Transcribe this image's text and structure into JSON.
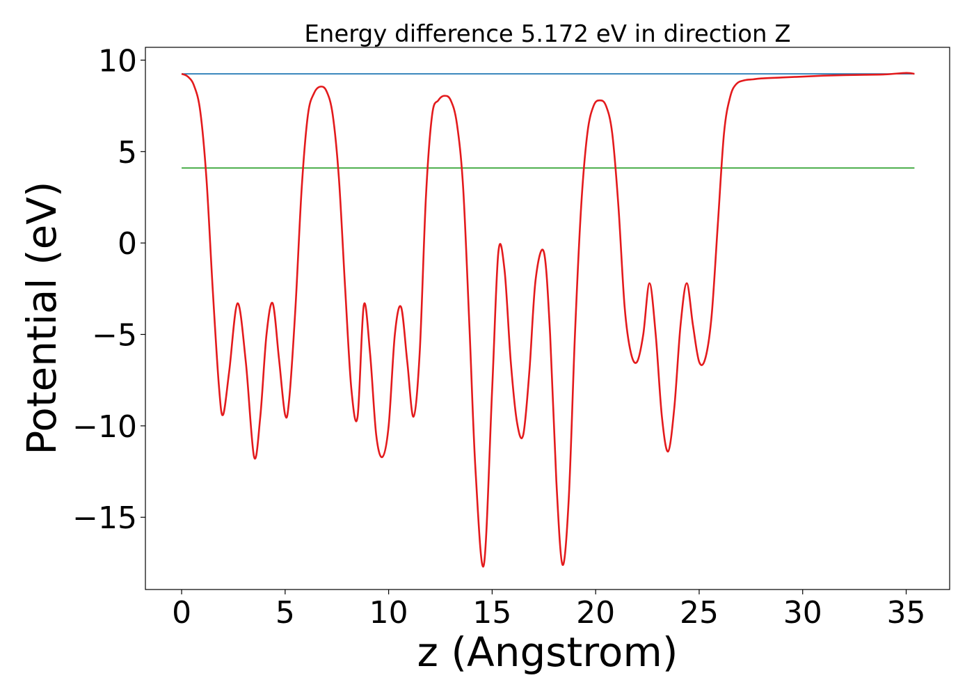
{
  "chart_data": {
    "type": "line",
    "title": "Energy difference 5.172 eV in direction Z",
    "xlabel": "z (Angstrom)",
    "ylabel": "Potential (eV)",
    "xlim": [
      -1.75,
      37.1
    ],
    "ylim": [
      -18.95,
      10.7
    ],
    "xticks": [
      0,
      5,
      10,
      15,
      20,
      25,
      30,
      35
    ],
    "xtick_labels": [
      "0",
      "5",
      "10",
      "15",
      "20",
      "25",
      "30",
      "35"
    ],
    "yticks": [
      10,
      5,
      0,
      -5,
      -10,
      -15
    ],
    "ytick_labels": [
      "10",
      "5",
      "0",
      "−5",
      "−10",
      "−15"
    ],
    "grid": false,
    "series": [
      {
        "color": "#1f77b4",
        "x": [
          0,
          35.4
        ],
        "y": [
          9.25,
          9.25
        ]
      },
      {
        "color": "#2ca02c",
        "x": [
          0,
          35.4
        ],
        "y": [
          4.1,
          4.1
        ]
      },
      {
        "color": "#e31a1c",
        "x": [
          0,
          0.3,
          0.6,
          0.9,
          1.2,
          1.5,
          1.8,
          2.0,
          2.3,
          2.7,
          3.1,
          3.5,
          3.8,
          4.1,
          4.4,
          4.7,
          5.0,
          5.2,
          5.5,
          5.8,
          6.1,
          6.4,
          6.7,
          7.0,
          7.3,
          7.6,
          7.9,
          8.2,
          8.5,
          8.8,
          9.1,
          9.4,
          9.7,
          10.0,
          10.3,
          10.6,
          10.9,
          11.2,
          11.5,
          11.8,
          12.1,
          12.4,
          12.7,
          13.0,
          13.3,
          13.6,
          13.9,
          14.2,
          14.6,
          15.0,
          15.3,
          15.6,
          15.9,
          16.2,
          16.5,
          16.8,
          17.1,
          17.5,
          17.8,
          18.1,
          18.4,
          18.7,
          19.0,
          19.3,
          19.6,
          19.9,
          20.2,
          20.5,
          20.8,
          21.1,
          21.4,
          21.7,
          22.0,
          22.3,
          22.6,
          22.9,
          23.2,
          23.5,
          23.8,
          24.1,
          24.4,
          24.7,
          25.0,
          25.3,
          25.6,
          25.9,
          26.2,
          26.5,
          26.8,
          27.2,
          27.6,
          28.0,
          29.0,
          30.0,
          31.0,
          32.0,
          33.0,
          34.0,
          35.0,
          35.4
        ],
        "y": [
          9.25,
          9.1,
          8.6,
          7.2,
          3.5,
          -2.5,
          -7.8,
          -9.4,
          -7.0,
          -3.3,
          -6.5,
          -11.7,
          -9.5,
          -5.0,
          -3.3,
          -6.3,
          -9.4,
          -8.5,
          -3.5,
          3.0,
          7.0,
          8.2,
          8.55,
          8.3,
          7.0,
          3.5,
          -2.5,
          -8.0,
          -9.5,
          -3.4,
          -6.0,
          -10.5,
          -11.7,
          -10.0,
          -5.0,
          -3.5,
          -6.5,
          -9.5,
          -6.0,
          2.5,
          7.0,
          7.8,
          8.05,
          7.8,
          6.5,
          3.0,
          -4.5,
          -12.5,
          -17.6,
          -8.0,
          -0.5,
          -1.5,
          -6.5,
          -9.8,
          -10.5,
          -7.0,
          -2.0,
          -0.5,
          -5.0,
          -13.0,
          -17.6,
          -14.0,
          -5.0,
          2.0,
          6.0,
          7.5,
          7.8,
          7.5,
          6.0,
          2.0,
          -3.5,
          -6.0,
          -6.5,
          -5.0,
          -2.2,
          -5.0,
          -9.5,
          -11.4,
          -9.0,
          -4.5,
          -2.2,
          -4.5,
          -6.5,
          -6.3,
          -4.0,
          1.0,
          6.0,
          8.0,
          8.7,
          8.9,
          8.95,
          9.0,
          9.05,
          9.1,
          9.15,
          9.18,
          9.2,
          9.22,
          9.3,
          9.25
        ]
      }
    ]
  }
}
